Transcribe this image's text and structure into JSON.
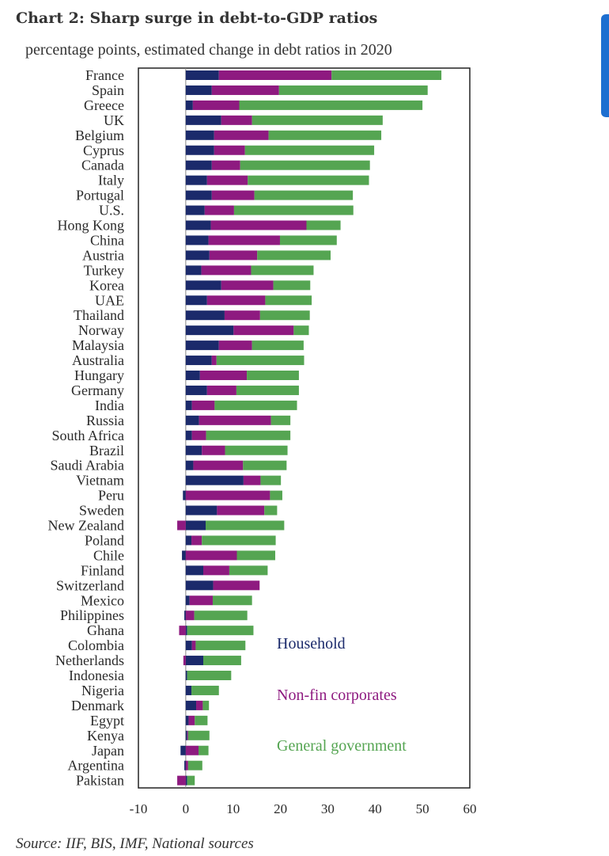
{
  "header": {
    "title": "Chart 2: Sharp surge in debt-to-GDP ratios",
    "subtitle": "percentage points, estimated change in debt ratios in 2020"
  },
  "footer": {
    "source": "Source: IIF, BIS, IMF, National sources"
  },
  "colors": {
    "household": "#1b2a6b",
    "corporates": "#8e1a80",
    "government": "#55a552"
  },
  "chart_data": {
    "type": "bar",
    "orientation": "horizontal",
    "stacked": true,
    "title": "Chart 2: Sharp surge in debt-to-GDP ratios",
    "subtitle": "percentage points, estimated change in debt ratios in 2020",
    "xlim": [
      -10,
      60
    ],
    "x_ticks": [
      -10,
      0,
      10,
      20,
      30,
      40,
      50,
      60
    ],
    "grid": false,
    "legend_position": "bottom-right inside plot",
    "categories": [
      "France",
      "Spain",
      "Greece",
      "UK",
      "Belgium",
      "Cyprus",
      "Canada",
      "Italy",
      "Portugal",
      "U.S.",
      "Hong Kong",
      "China",
      "Austria",
      "Turkey",
      "Korea",
      "UAE",
      "Thailand",
      "Norway",
      "Malaysia",
      "Australia",
      "Hungary",
      "Germany",
      "India",
      "Russia",
      "South Africa",
      "Brazil",
      "Saudi Arabia",
      "Vietnam",
      "Peru",
      "Sweden",
      "New Zealand",
      "Poland",
      "Chile",
      "Finland",
      "Switzerland",
      "Mexico",
      "Philippines",
      "Ghana",
      "Colombia",
      "Netherlands",
      "Indonesia",
      "Nigeria",
      "Denmark",
      "Egypt",
      "Kenya",
      "Japan",
      "Argentina",
      "Pakistan"
    ],
    "series": [
      {
        "name": "Household",
        "color": "#1b2a6b",
        "values": [
          7,
          5.5,
          1.5,
          7.5,
          6,
          6,
          5.5,
          4.5,
          5.5,
          4,
          5.3,
          4.8,
          5,
          3.3,
          7.5,
          4.5,
          8.2,
          10.1,
          7,
          5.5,
          3,
          4.5,
          1.3,
          2.8,
          1.3,
          3.4,
          1.6,
          12.2,
          -0.6,
          6.6,
          4.2,
          1.2,
          -0.8,
          3.7,
          5.8,
          0.8,
          -0.3,
          0.3,
          1.3,
          3.7,
          0.3,
          1.2,
          2.2,
          0.6,
          0.3,
          -1.1,
          -0.3,
          0.3
        ]
      },
      {
        "name": "Non-fin corporates",
        "color": "#8e1a80",
        "values": [
          23.8,
          14.2,
          9.8,
          6.5,
          11.5,
          6.5,
          6,
          8.6,
          9,
          6.2,
          20.2,
          15.1,
          10.1,
          10.5,
          11,
          12.3,
          7.5,
          12.7,
          7,
          1,
          9.9,
          6.2,
          4.8,
          15.2,
          3,
          4.9,
          10.5,
          3.6,
          17.8,
          10,
          -1.8,
          2.2,
          10.8,
          5.5,
          9.8,
          4.9,
          1.8,
          -1.4,
          0.8,
          -0.5,
          0,
          0,
          1.4,
          1.3,
          0.2,
          2.7,
          0.5,
          -1.8
        ]
      },
      {
        "name": "General government",
        "color": "#55a552",
        "values": [
          23.2,
          31.4,
          38.7,
          27.6,
          23.8,
          27.3,
          27.4,
          25.6,
          20.8,
          25.2,
          7.2,
          12,
          15.5,
          13.2,
          7.8,
          9.8,
          10.5,
          3.2,
          10.9,
          18.5,
          11,
          13.2,
          17.4,
          4.1,
          17.8,
          13.2,
          9.2,
          4.3,
          2.6,
          2.7,
          16.6,
          15.6,
          8.1,
          8.1,
          0,
          8.3,
          11.2,
          14,
          10.5,
          8,
          9.3,
          5.8,
          1.3,
          2.7,
          4.5,
          2.1,
          3,
          1.6
        ]
      }
    ]
  }
}
